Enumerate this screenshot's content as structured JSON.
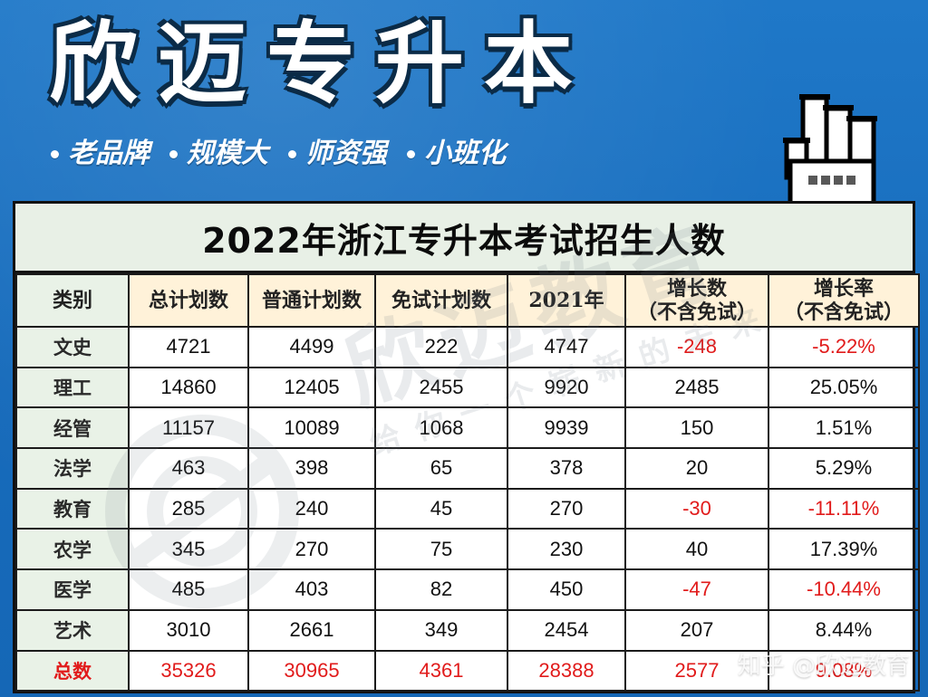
{
  "brand": {
    "title": "欣迈专升本",
    "taglines": [
      "老品牌",
      "规模大",
      "师资强",
      "小班化"
    ]
  },
  "table": {
    "title": "2022年浙江专升本考试招生人数",
    "headers": {
      "type": "类别",
      "total_plan": "总计划数",
      "normal_plan": "普通计划数",
      "exempt_plan": "免试计划数",
      "year_2021": "2021年",
      "growth_num": "增长数",
      "growth_num_note": "（不含免试）",
      "growth_rate": "增长率",
      "growth_rate_note": "（不含免试）"
    },
    "rows": [
      {
        "type": "文史",
        "total": "4721",
        "normal": "4499",
        "exempt": "222",
        "y2021": "4747",
        "growth": "-248",
        "rate": "-5.22%"
      },
      {
        "type": "理工",
        "total": "14860",
        "normal": "12405",
        "exempt": "2455",
        "y2021": "9920",
        "growth": "2485",
        "rate": "25.05%"
      },
      {
        "type": "经管",
        "total": "11157",
        "normal": "10089",
        "exempt": "1068",
        "y2021": "9939",
        "growth": "150",
        "rate": "1.51%"
      },
      {
        "type": "法学",
        "total": "463",
        "normal": "398",
        "exempt": "65",
        "y2021": "378",
        "growth": "20",
        "rate": "5.29%"
      },
      {
        "type": "教育",
        "total": "285",
        "normal": "240",
        "exempt": "45",
        "y2021": "270",
        "growth": "-30",
        "rate": "-11.11%"
      },
      {
        "type": "农学",
        "total": "345",
        "normal": "270",
        "exempt": "75",
        "y2021": "230",
        "growth": "40",
        "rate": "17.39%"
      },
      {
        "type": "医学",
        "total": "485",
        "normal": "403",
        "exempt": "82",
        "y2021": "450",
        "growth": "-47",
        "rate": "-10.44%"
      },
      {
        "type": "艺术",
        "total": "3010",
        "normal": "2661",
        "exempt": "349",
        "y2021": "2454",
        "growth": "207",
        "rate": "8.44%"
      },
      {
        "type": "总数",
        "total": "35326",
        "normal": "30965",
        "exempt": "4361",
        "y2021": "28388",
        "growth": "2577",
        "rate": "9.08%"
      }
    ]
  },
  "watermark": {
    "main": "欣迈教育",
    "sub": "给你一个崭新的未来"
  },
  "credit": "知乎 @欣迈教育",
  "colors": {
    "background": "#1a6fbf",
    "negative": "#e11b1b",
    "header_cream": "#fff2d9",
    "type_green": "#e9f2e7"
  },
  "icons": {
    "hand": "pixel-hand-pointer-icon",
    "watermark_logo": "watermark-logo-icon"
  }
}
